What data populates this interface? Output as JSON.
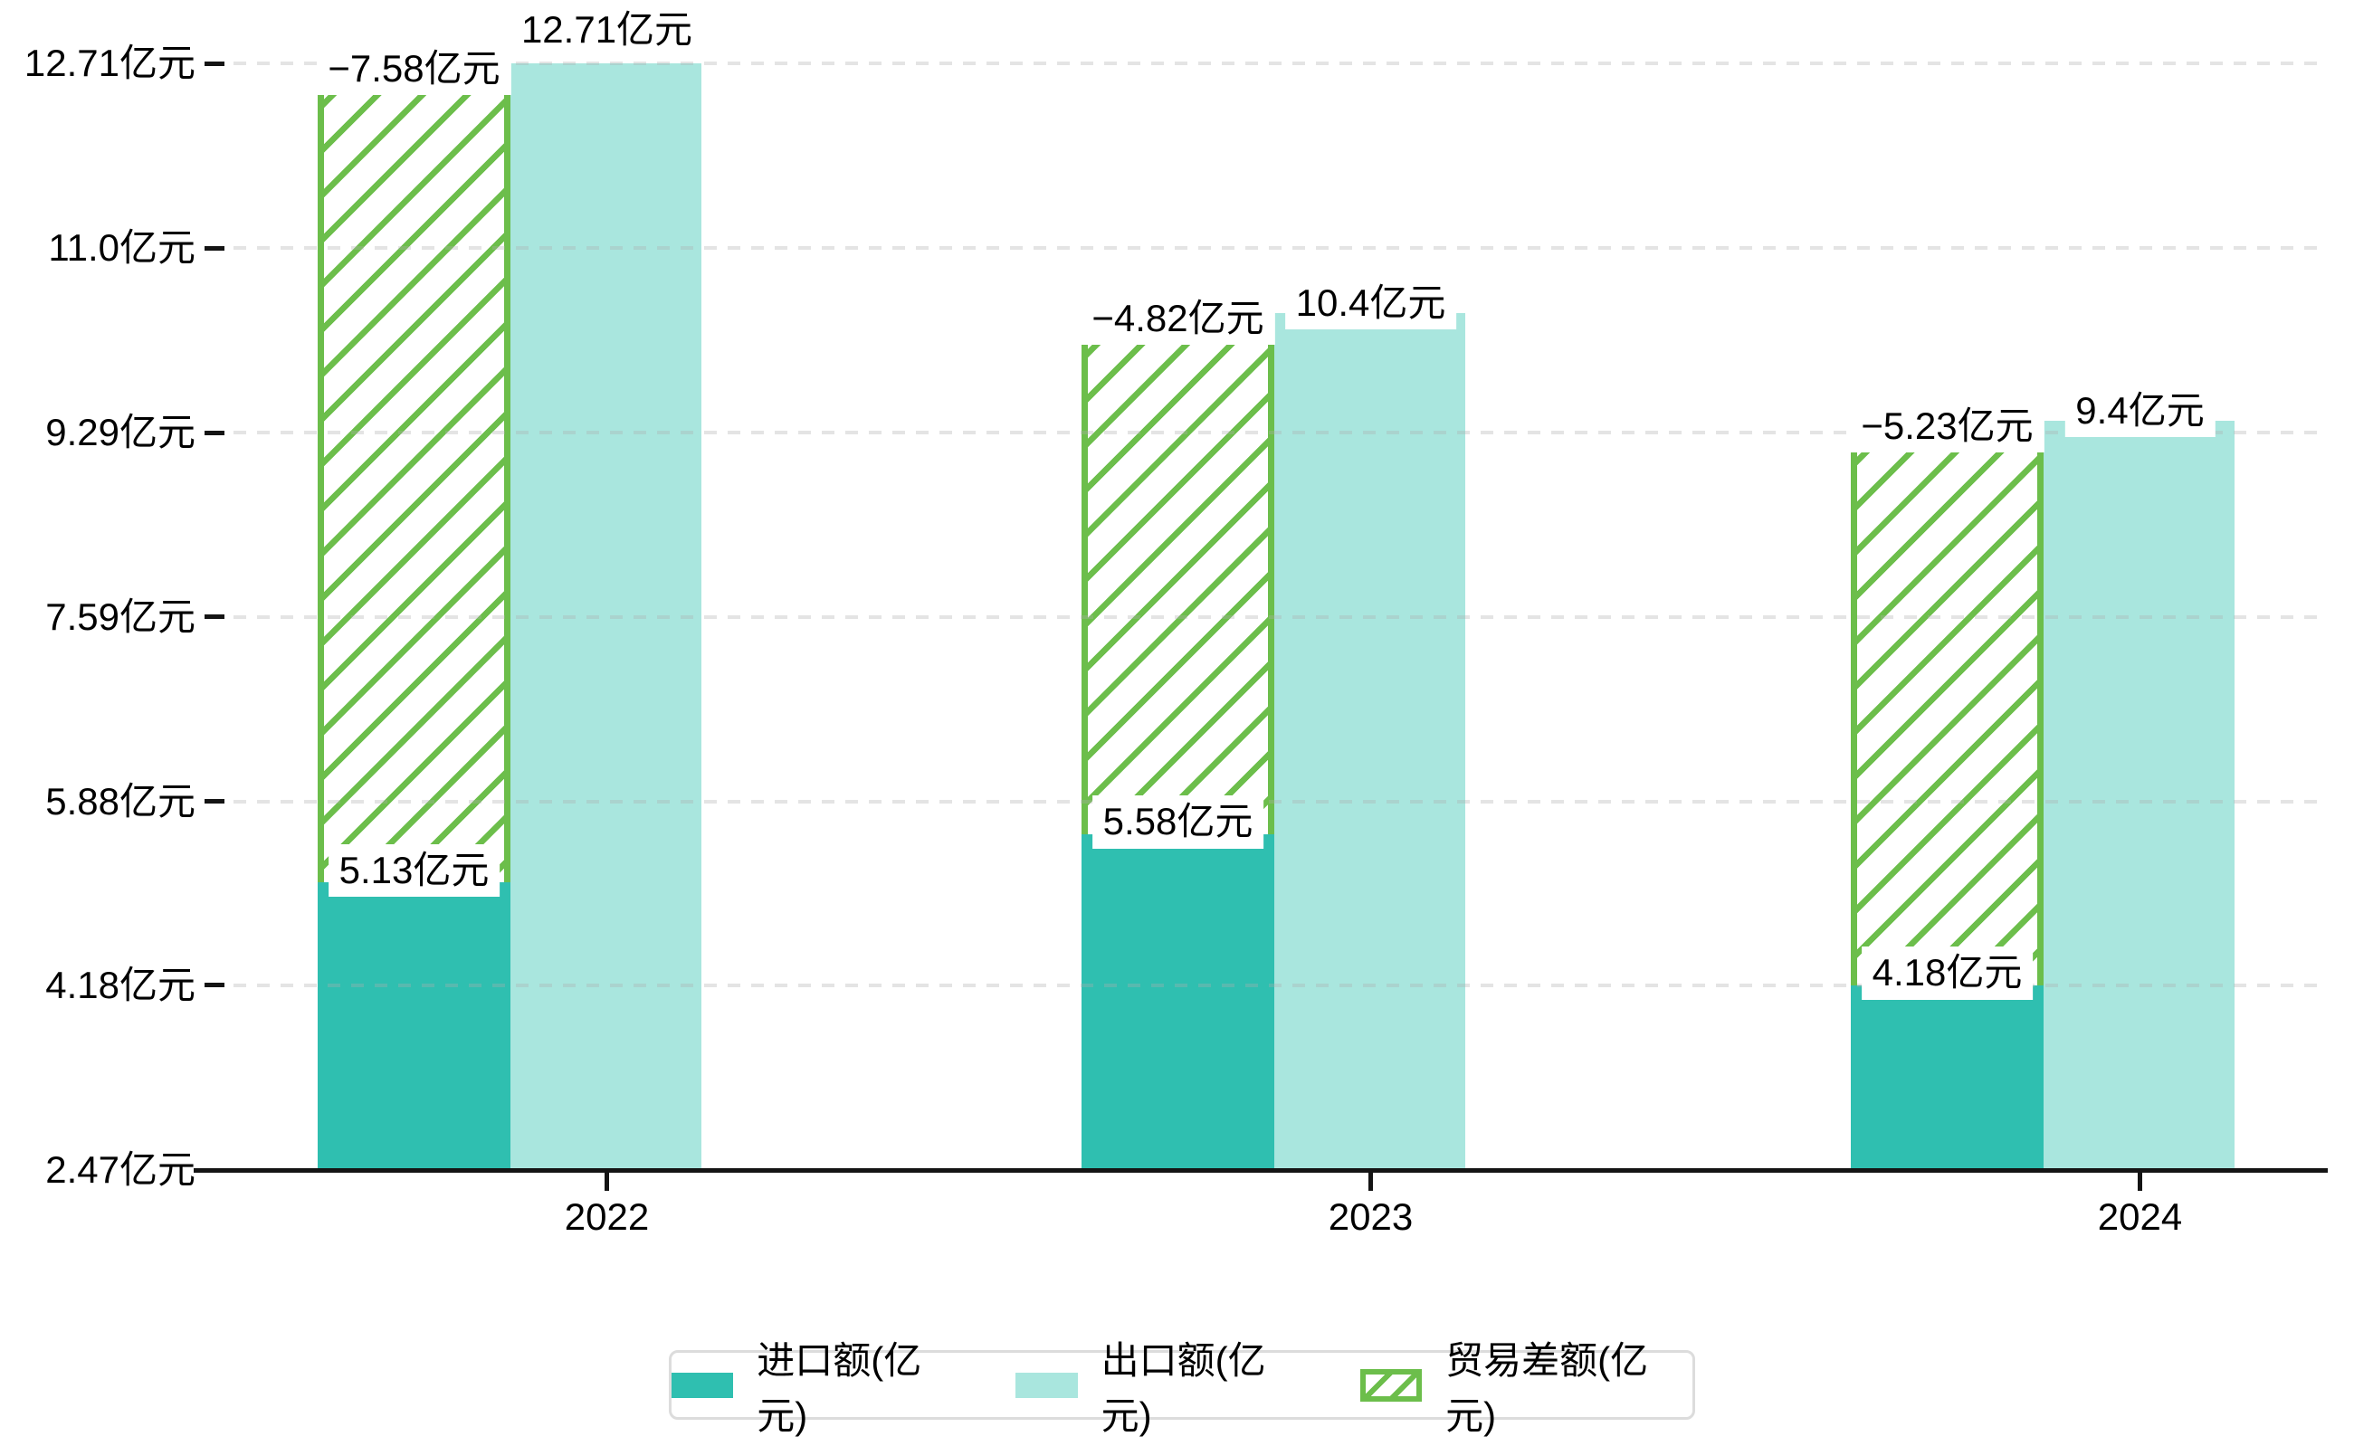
{
  "chart_data": {
    "type": "bar",
    "title": "",
    "categories": [
      "2022",
      "2023",
      "2024"
    ],
    "series": [
      {
        "name": "进口额(亿元)",
        "values": [
          5.13,
          5.58,
          4.18
        ],
        "color": "#2fbfb0",
        "style": "solid"
      },
      {
        "name": "出口额(亿元)",
        "values": [
          12.71,
          10.4,
          9.4
        ],
        "color": "#a9e6de",
        "style": "solid"
      },
      {
        "name": "贸易差额(亿元)",
        "values": [
          -7.58,
          -4.82,
          -5.23
        ],
        "color": "#6cbe4b",
        "style": "hatched"
      }
    ],
    "bar_labels": {
      "import": [
        "5.13亿元",
        "5.58亿元",
        "4.18亿元"
      ],
      "export": [
        "12.71亿元",
        "10.4亿元",
        "9.4亿元"
      ],
      "balance": [
        "−7.58亿元",
        "−4.82亿元",
        "−5.23亿元"
      ]
    },
    "y_ticks": [
      {
        "value": 2.47,
        "label": "2.47亿元"
      },
      {
        "value": 4.18,
        "label": "4.18亿元"
      },
      {
        "value": 5.88,
        "label": "5.88亿元"
      },
      {
        "value": 7.59,
        "label": "7.59亿元"
      },
      {
        "value": 9.29,
        "label": "9.29亿元"
      },
      {
        "value": 11.0,
        "label": "11.0亿元"
      },
      {
        "value": 12.71,
        "label": "12.71亿元"
      }
    ],
    "ylim": [
      2.47,
      12.71
    ],
    "xlabel": "",
    "ylabel": "",
    "grid": "horizontal-dashed",
    "legend_position": "bottom",
    "legend": [
      {
        "label": "进口额(亿元)",
        "color": "#2fbfb0",
        "style": "solid"
      },
      {
        "label": "出口额(亿元)",
        "color": "#a9e6de",
        "style": "solid"
      },
      {
        "label": "贸易差额(亿元)",
        "color": "#6cbe4b",
        "style": "hatched"
      }
    ]
  }
}
